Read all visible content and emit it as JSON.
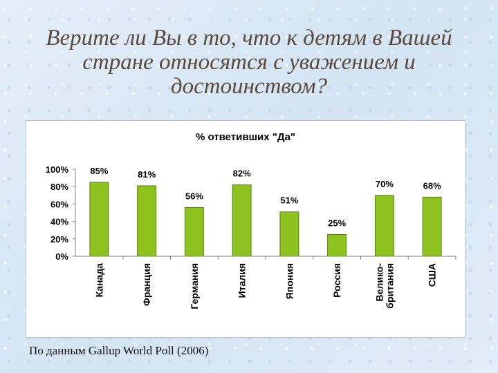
{
  "slide": {
    "title": "Верите ли Вы в то, что к детям в Вашей стране относятся с уважением и достоинством?",
    "source": "По данным Gallup World Poll (2006)"
  },
  "colors": {
    "bar": "#8dc21f",
    "bar_edge": "#5a7f10",
    "title_text": "#5b4a3c"
  },
  "chart_data": {
    "type": "bar",
    "title": "% ответивших \"Да\"",
    "categories": [
      "Канада",
      "Франция",
      "Германия",
      "Италия",
      "Япония",
      "Россия",
      "Велико-\nбритания",
      "США"
    ],
    "values": [
      85,
      81,
      56,
      82,
      51,
      25,
      70,
      68
    ],
    "data_labels": [
      "85%",
      "81%",
      "56%",
      "82%",
      "51%",
      "25%",
      "70%",
      "68%"
    ],
    "y_ticks": [
      "0%",
      "20%",
      "40%",
      "60%",
      "80%",
      "100%"
    ],
    "ylim": [
      0,
      100
    ],
    "xlabel": "",
    "ylabel": "",
    "grid": false,
    "legend": "none"
  }
}
